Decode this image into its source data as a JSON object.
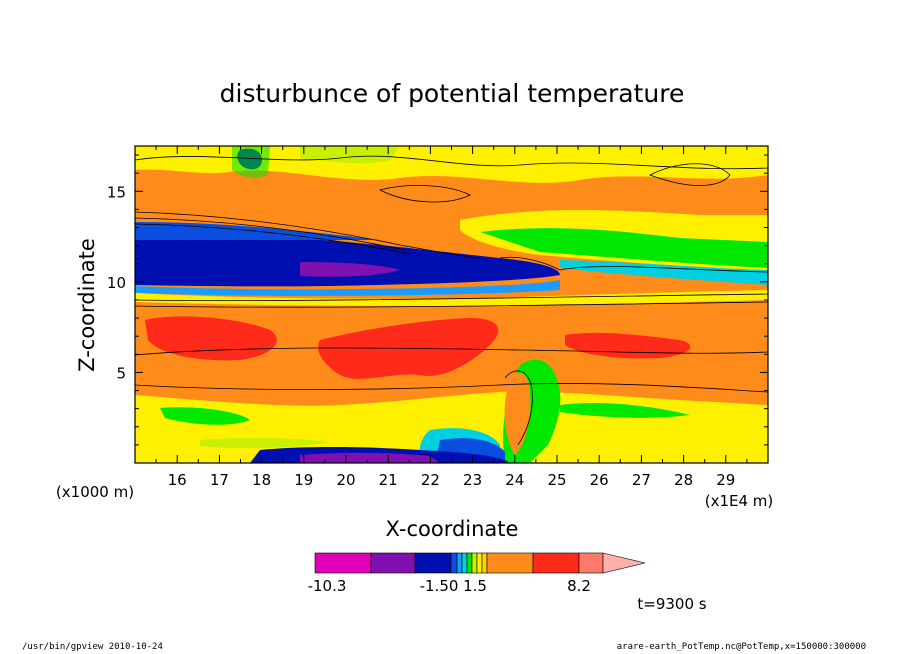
{
  "chart_data": {
    "type": "heatmap",
    "title": "disturbunce of potential temperature",
    "xlabel": "X-coordinate",
    "ylabel": "Z-coordinate",
    "x_unit": "(x1E4 m)",
    "y_unit": "(x1000 m)",
    "x_ticks": [
      "16",
      "17",
      "18",
      "19",
      "20",
      "21",
      "22",
      "23",
      "24",
      "25",
      "26",
      "27",
      "28",
      "29"
    ],
    "y_ticks": [
      "5",
      "10",
      "15"
    ],
    "xlim": [
      15.0,
      30.0
    ],
    "ylim": [
      0.0,
      17.5
    ],
    "colorbar": {
      "labels": [
        "-10.3",
        "-1.50",
        "1.5",
        "8.2"
      ],
      "colors": [
        "#e000b8",
        "#8010b0",
        "#0010b0",
        "#0a4ee0",
        "#1a9cff",
        "#00d0e0",
        "#00e800",
        "#c8f000",
        "#fff000",
        "#ffd000",
        "#ff8c1a",
        "#ff2a1a",
        "#ff7a6a",
        "#ffb0a8"
      ]
    },
    "time_label": "t=9300 s"
  },
  "footer": {
    "left": "/usr/bin/gpview   2010-10-24",
    "right": "arare-earth_PotTemp.nc@PotTemp,x=150000:300000"
  }
}
